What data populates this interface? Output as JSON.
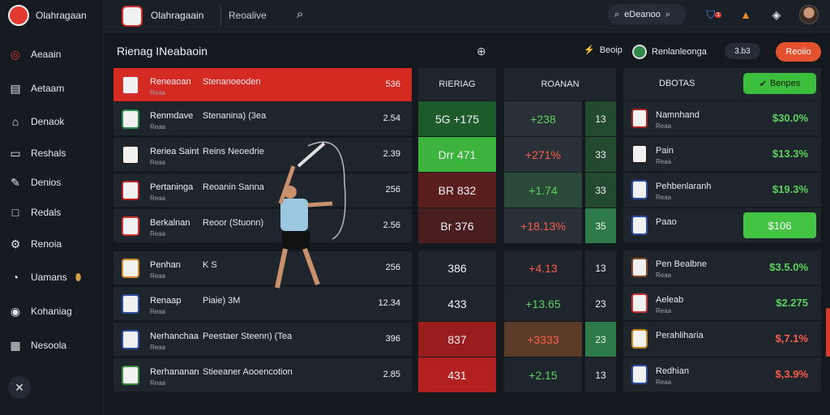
{
  "brand": {
    "name": "Olahragaan"
  },
  "sidebar": {
    "items": [
      {
        "label": "Aeaain",
        "icon": "target-icon"
      },
      {
        "label": "Aetaam",
        "icon": "clipboard-icon"
      },
      {
        "label": "Denaok",
        "icon": "home-icon"
      },
      {
        "label": "Reshals",
        "icon": "monitor-icon"
      },
      {
        "label": "Denios",
        "icon": "pencil-icon"
      },
      {
        "label": "Redals",
        "icon": "square-icon"
      },
      {
        "label": "Renoia",
        "icon": "gear-icon"
      },
      {
        "label": "Uamans",
        "icon": "gauge-icon"
      },
      {
        "label": "Kohaniag",
        "icon": "globe-icon"
      },
      {
        "label": "Nesoola",
        "icon": "briefcase-icon"
      }
    ]
  },
  "topbar": {
    "brand": "Olahragaain",
    "tab": "Reoalive",
    "search_label": "eDeanoo",
    "notif_count": "1"
  },
  "subheader": {
    "title": "Rienag INeabaoin",
    "label1": "Beoip",
    "label2": "Renlanleonga",
    "pill": "3.b3",
    "button": "Reoiio"
  },
  "board": {
    "rows": [
      {
        "name": "Reneaoan",
        "sub": "Reaa",
        "tag": "Stenanoeoden",
        "value": "536"
      },
      {
        "name": "Renmdave",
        "sub": "Reaa",
        "tag": "Stenanina) (3ea",
        "value": "2.54"
      },
      {
        "name": "Reriea Saint",
        "sub": "Reaa",
        "tag": "Reins Neoedrie",
        "value": "2.39"
      },
      {
        "name": "Pertaninga",
        "sub": "Reaa",
        "tag": "Reoanin Sanna",
        "value": "256"
      },
      {
        "name": "Berkalnan",
        "sub": "Reaa",
        "tag": "Reoor (Stuonn)",
        "value": "2.56"
      },
      {
        "name": "Penhan",
        "sub": "Reaa",
        "tag": "K S",
        "value": "256"
      },
      {
        "name": "Renaap",
        "sub": "Reaa",
        "tag": "Piaie) 3M",
        "value": "12.34"
      },
      {
        "name": "Nerhanchaa",
        "sub": "Reaa",
        "tag": "Peestaer Steenn) (Tea",
        "value": "396"
      },
      {
        "name": "Rerhananan",
        "sub": "Reaa",
        "tag": "Stieeaner Aooencotion",
        "value": "2.85"
      }
    ]
  },
  "col1": {
    "header": "RIERIAG",
    "cells": [
      "5G +175",
      "Drr 471",
      "BR 832",
      "Br 376",
      "386",
      "433",
      "837",
      "431"
    ]
  },
  "col2": {
    "header": "ROANAN",
    "cells": [
      "+238",
      "+271%",
      "+1.74",
      "+18.13%",
      "+4.13",
      "+13.65",
      "+3333",
      "+2.15"
    ]
  },
  "col3": {
    "cells": [
      "13",
      "33",
      "33",
      "35",
      "13",
      "23",
      "23",
      "13"
    ]
  },
  "right_panel": {
    "title": "DBOTAS",
    "button": "Benpes",
    "rows": [
      {
        "name": "Namnhand",
        "sub": "Reaa",
        "value": "$30.0%"
      },
      {
        "name": "Pain",
        "sub": "Reaa",
        "value": "$13.3%"
      },
      {
        "name": "Pehbenlaranh",
        "sub": "Reaa",
        "value": "$19.3%"
      },
      {
        "name": "Paao",
        "sub": "",
        "value": "$106"
      },
      {
        "name": "Pen Bealbne",
        "sub": "Reaa",
        "value": "$3.5.0%"
      },
      {
        "name": "Aeleab",
        "sub": "Reaa",
        "value": "$2.275"
      },
      {
        "name": "Perahliharia",
        "sub": "",
        "value": "$,7.1%"
      },
      {
        "name": "Redhian",
        "sub": "Reaa",
        "value": "$,3.9%"
      }
    ]
  },
  "colors": {
    "green": "#3cbf3c",
    "red": "#d42a22",
    "panel": "#1f252d"
  }
}
